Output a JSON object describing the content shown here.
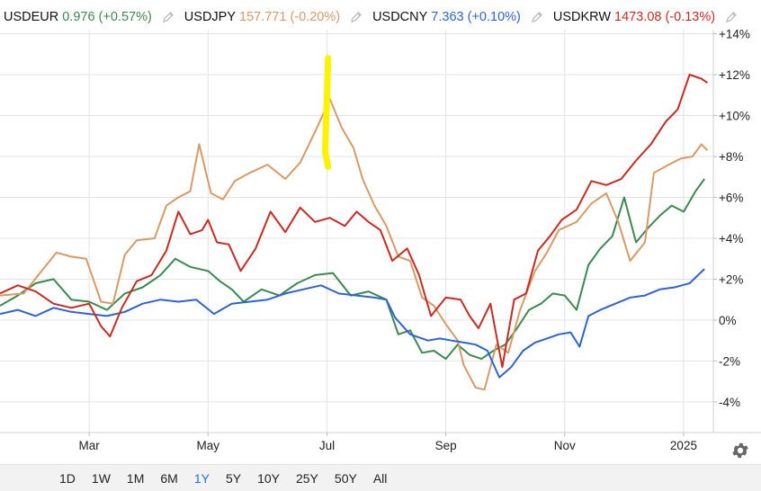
{
  "legend": [
    {
      "symbol": "USDEUR",
      "value": "0.976",
      "change": "(+0.57%)",
      "color": "#3a8a4f"
    },
    {
      "symbol": "USDJPY",
      "value": "157.771",
      "change": "(-0.20%)",
      "color": "#d99a66"
    },
    {
      "symbol": "USDCNY",
      "value": "7.363",
      "change": "(+0.10%)",
      "color": "#2e63d6"
    },
    {
      "symbol": "USDKRW",
      "value": "1473.08",
      "change": "(-0.13%)",
      "color": "#cc2a20"
    }
  ],
  "range_buttons": [
    {
      "label": "1D",
      "active": false
    },
    {
      "label": "1W",
      "active": false
    },
    {
      "label": "1M",
      "active": false
    },
    {
      "label": "6M",
      "active": false
    },
    {
      "label": "1Y",
      "active": true
    },
    {
      "label": "5Y",
      "active": false
    },
    {
      "label": "10Y",
      "active": false
    },
    {
      "label": "25Y",
      "active": false
    },
    {
      "label": "50Y",
      "active": false
    },
    {
      "label": "All",
      "active": false
    }
  ],
  "chart_data": {
    "type": "line",
    "x_range": [
      0,
      12
    ],
    "ylim": [
      -5.5,
      14.2
    ],
    "y_ticks": [
      -4,
      -2,
      0,
      2,
      4,
      6,
      8,
      10,
      12,
      14
    ],
    "y_tick_labels": [
      "-4%",
      "-2%",
      "0%",
      "+2%",
      "+4%",
      "+6%",
      "+8%",
      "+10%",
      "+12%",
      "+14%"
    ],
    "x_ticks": [
      1.5,
      3.5,
      5.5,
      7.5,
      9.5,
      11.5
    ],
    "x_tick_labels": [
      "Mar",
      "May",
      "Jul",
      "Sep",
      "Nov",
      "2025"
    ],
    "grid": true,
    "legend_position": "top",
    "series": [
      {
        "name": "USDEUR",
        "color": "#3a8a4f",
        "points": [
          [
            0,
            0.7
          ],
          [
            0.3,
            1.2
          ],
          [
            0.6,
            1.8
          ],
          [
            0.9,
            2.0
          ],
          [
            1.2,
            1.0
          ],
          [
            1.5,
            0.9
          ],
          [
            1.8,
            0.5
          ],
          [
            2.1,
            1.3
          ],
          [
            2.4,
            1.6
          ],
          [
            2.7,
            2.2
          ],
          [
            2.95,
            3.0
          ],
          [
            3.2,
            2.6
          ],
          [
            3.5,
            2.4
          ],
          [
            3.7,
            1.9
          ],
          [
            3.9,
            1.5
          ],
          [
            4.1,
            0.9
          ],
          [
            4.4,
            1.5
          ],
          [
            4.7,
            1.2
          ],
          [
            5.0,
            1.8
          ],
          [
            5.3,
            2.2
          ],
          [
            5.6,
            2.3
          ],
          [
            5.9,
            1.2
          ],
          [
            6.2,
            1.4
          ],
          [
            6.5,
            1.0
          ],
          [
            6.7,
            -0.7
          ],
          [
            6.9,
            -0.5
          ],
          [
            7.1,
            -1.6
          ],
          [
            7.3,
            -1.5
          ],
          [
            7.5,
            -1.9
          ],
          [
            7.7,
            -1.2
          ],
          [
            7.9,
            -1.7
          ],
          [
            8.1,
            -1.9
          ],
          [
            8.3,
            -1.5
          ],
          [
            8.5,
            -1.2
          ],
          [
            8.7,
            -0.4
          ],
          [
            8.9,
            0.5
          ],
          [
            9.1,
            0.8
          ],
          [
            9.3,
            1.3
          ],
          [
            9.5,
            1.2
          ],
          [
            9.7,
            0.5
          ],
          [
            9.9,
            2.7
          ],
          [
            10.1,
            3.5
          ],
          [
            10.3,
            4.1
          ],
          [
            10.5,
            6.0
          ],
          [
            10.7,
            3.8
          ],
          [
            10.9,
            4.5
          ],
          [
            11.1,
            5.1
          ],
          [
            11.3,
            5.6
          ],
          [
            11.5,
            5.3
          ],
          [
            11.7,
            6.3
          ],
          [
            11.85,
            6.9
          ]
        ]
      },
      {
        "name": "USDJPY",
        "color": "#d99a66",
        "points": [
          [
            0,
            1.2
          ],
          [
            0.4,
            1.3
          ],
          [
            0.7,
            2.4
          ],
          [
            0.95,
            3.3
          ],
          [
            1.2,
            3.1
          ],
          [
            1.45,
            3.0
          ],
          [
            1.7,
            0.9
          ],
          [
            1.9,
            0.8
          ],
          [
            2.1,
            3.2
          ],
          [
            2.3,
            3.9
          ],
          [
            2.6,
            4.0
          ],
          [
            2.8,
            5.6
          ],
          [
            3.0,
            6.0
          ],
          [
            3.2,
            6.3
          ],
          [
            3.35,
            8.6
          ],
          [
            3.55,
            6.2
          ],
          [
            3.75,
            5.9
          ],
          [
            3.95,
            6.8
          ],
          [
            4.2,
            7.2
          ],
          [
            4.5,
            7.6
          ],
          [
            4.8,
            6.9
          ],
          [
            5.05,
            7.7
          ],
          [
            5.3,
            9.2
          ],
          [
            5.55,
            10.8
          ],
          [
            5.75,
            9.4
          ],
          [
            5.95,
            8.4
          ],
          [
            6.1,
            6.9
          ],
          [
            6.3,
            5.6
          ],
          [
            6.5,
            4.6
          ],
          [
            6.7,
            3.1
          ],
          [
            6.9,
            2.9
          ],
          [
            7.1,
            1.1
          ],
          [
            7.3,
            0.7
          ],
          [
            7.5,
            -0.2
          ],
          [
            7.7,
            -1.0
          ],
          [
            7.8,
            -2.2
          ],
          [
            8.0,
            -3.3
          ],
          [
            8.15,
            -3.4
          ],
          [
            8.35,
            -1.2
          ],
          [
            8.55,
            -1.6
          ],
          [
            8.75,
            0.5
          ],
          [
            9.0,
            2.4
          ],
          [
            9.2,
            3.3
          ],
          [
            9.4,
            4.4
          ],
          [
            9.7,
            4.8
          ],
          [
            9.95,
            5.7
          ],
          [
            10.2,
            6.2
          ],
          [
            10.4,
            4.8
          ],
          [
            10.6,
            2.9
          ],
          [
            10.85,
            3.8
          ],
          [
            11.0,
            7.2
          ],
          [
            11.25,
            7.6
          ],
          [
            11.45,
            7.9
          ],
          [
            11.65,
            8.0
          ],
          [
            11.8,
            8.6
          ],
          [
            11.9,
            8.3
          ]
        ]
      },
      {
        "name": "USDCNY",
        "color": "#2e63d6",
        "points": [
          [
            0,
            0.3
          ],
          [
            0.3,
            0.5
          ],
          [
            0.6,
            0.2
          ],
          [
            0.9,
            0.6
          ],
          [
            1.2,
            0.4
          ],
          [
            1.5,
            0.3
          ],
          [
            1.8,
            0.2
          ],
          [
            2.1,
            0.4
          ],
          [
            2.4,
            0.8
          ],
          [
            2.7,
            1.0
          ],
          [
            3.0,
            0.9
          ],
          [
            3.3,
            1.0
          ],
          [
            3.6,
            0.3
          ],
          [
            3.9,
            0.8
          ],
          [
            4.2,
            0.9
          ],
          [
            4.5,
            1.0
          ],
          [
            4.8,
            1.3
          ],
          [
            5.1,
            1.5
          ],
          [
            5.4,
            1.7
          ],
          [
            5.7,
            1.3
          ],
          [
            6.0,
            1.2
          ],
          [
            6.3,
            1.1
          ],
          [
            6.5,
            1.0
          ],
          [
            6.65,
            0.1
          ],
          [
            6.9,
            -0.7
          ],
          [
            7.2,
            -1.0
          ],
          [
            7.4,
            -0.9
          ],
          [
            7.6,
            -1.0
          ],
          [
            7.8,
            -1.1
          ],
          [
            8.0,
            -1.2
          ],
          [
            8.2,
            -1.5
          ],
          [
            8.4,
            -2.8
          ],
          [
            8.6,
            -2.3
          ],
          [
            8.8,
            -1.5
          ],
          [
            9.0,
            -1.1
          ],
          [
            9.2,
            -0.9
          ],
          [
            9.4,
            -0.7
          ],
          [
            9.6,
            -0.6
          ],
          [
            9.75,
            -1.3
          ],
          [
            9.9,
            0.2
          ],
          [
            10.1,
            0.5
          ],
          [
            10.35,
            0.8
          ],
          [
            10.6,
            1.1
          ],
          [
            10.85,
            1.2
          ],
          [
            11.1,
            1.5
          ],
          [
            11.35,
            1.6
          ],
          [
            11.6,
            1.8
          ],
          [
            11.85,
            2.5
          ]
        ]
      },
      {
        "name": "USDKRW",
        "color": "#cc2a20",
        "points": [
          [
            0,
            1.3
          ],
          [
            0.3,
            1.7
          ],
          [
            0.6,
            1.4
          ],
          [
            0.9,
            0.8
          ],
          [
            1.2,
            0.6
          ],
          [
            1.5,
            0.8
          ],
          [
            1.7,
            -0.3
          ],
          [
            1.85,
            -0.8
          ],
          [
            2.05,
            0.6
          ],
          [
            2.3,
            1.9
          ],
          [
            2.55,
            2.2
          ],
          [
            2.8,
            3.4
          ],
          [
            3.0,
            5.3
          ],
          [
            3.2,
            4.2
          ],
          [
            3.4,
            4.4
          ],
          [
            3.5,
            4.9
          ],
          [
            3.65,
            3.8
          ],
          [
            3.85,
            3.7
          ],
          [
            4.05,
            2.4
          ],
          [
            4.3,
            3.5
          ],
          [
            4.55,
            5.3
          ],
          [
            4.8,
            4.3
          ],
          [
            5.05,
            5.5
          ],
          [
            5.3,
            4.8
          ],
          [
            5.55,
            5.0
          ],
          [
            5.8,
            4.6
          ],
          [
            6.0,
            5.3
          ],
          [
            6.2,
            4.8
          ],
          [
            6.4,
            4.4
          ],
          [
            6.6,
            2.9
          ],
          [
            6.85,
            3.5
          ],
          [
            7.05,
            2.2
          ],
          [
            7.25,
            0.2
          ],
          [
            7.5,
            1.1
          ],
          [
            7.75,
            1.0
          ],
          [
            7.9,
            0.2
          ],
          [
            8.05,
            -0.4
          ],
          [
            8.25,
            0.8
          ],
          [
            8.45,
            -2.3
          ],
          [
            8.65,
            1.0
          ],
          [
            8.85,
            1.3
          ],
          [
            9.05,
            3.4
          ],
          [
            9.25,
            4.1
          ],
          [
            9.45,
            4.9
          ],
          [
            9.7,
            5.4
          ],
          [
            9.95,
            6.8
          ],
          [
            10.2,
            6.6
          ],
          [
            10.45,
            6.9
          ],
          [
            10.7,
            7.8
          ],
          [
            10.95,
            8.6
          ],
          [
            11.2,
            9.7
          ],
          [
            11.4,
            10.3
          ],
          [
            11.6,
            12.0
          ],
          [
            11.8,
            11.8
          ],
          [
            11.9,
            11.6
          ]
        ]
      }
    ],
    "annotation": {
      "color": "#fff200",
      "points": [
        [
          5.52,
          12.8
        ],
        [
          5.5,
          11.0
        ],
        [
          5.48,
          9.2
        ],
        [
          5.47,
          8.2
        ],
        [
          5.52,
          7.5
        ]
      ]
    }
  }
}
